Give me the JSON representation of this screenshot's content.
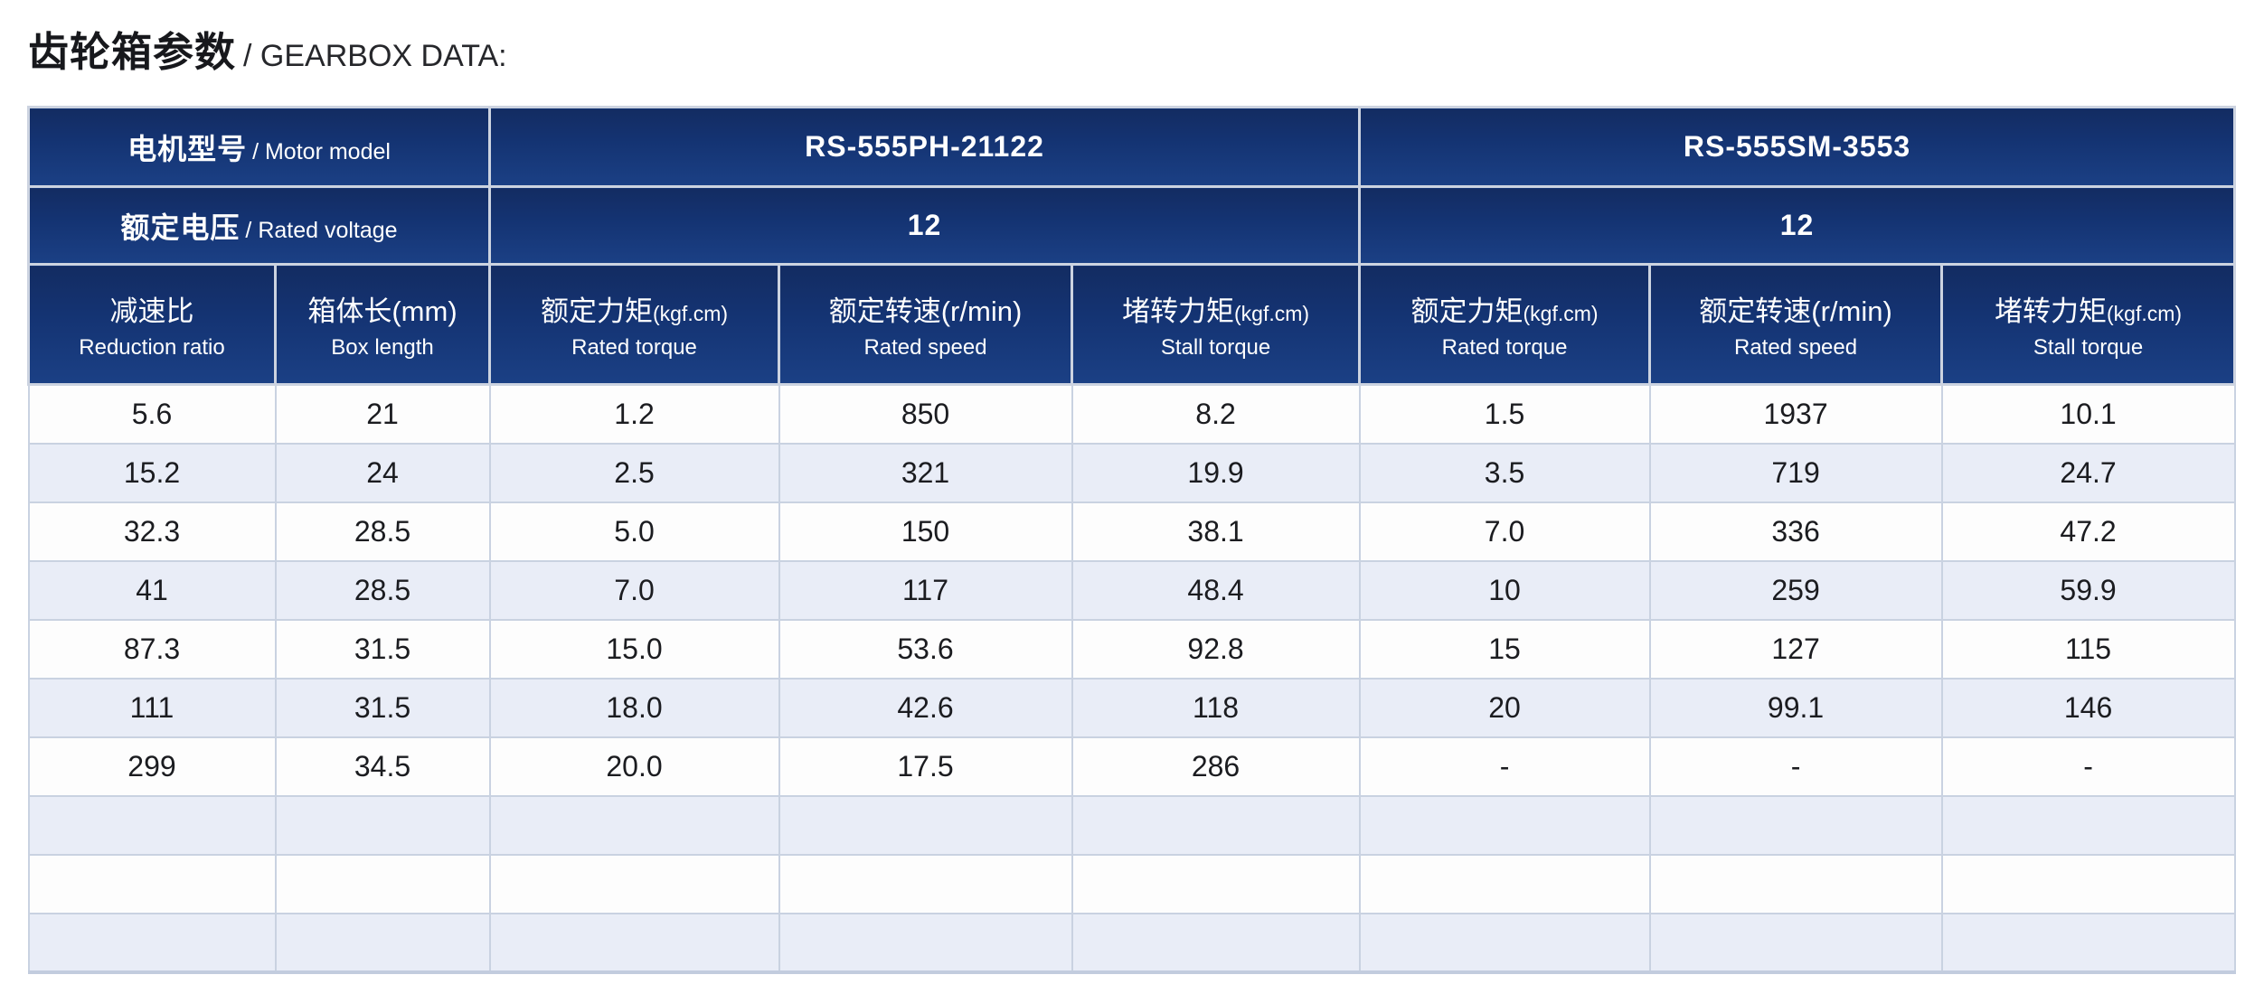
{
  "title": {
    "cn": "齿轮箱参数",
    "en": "/ GEARBOX DATA:"
  },
  "colors": {
    "header_navy_top": "#132c62",
    "header_navy_bottom": "#1b4085",
    "row_alt_blue": "#e9edf7",
    "row_white": "#fdfdfd",
    "grid_line": "#c9d2e1",
    "header_text": "#ffffff",
    "body_text": "#1b1c20"
  },
  "table": {
    "motor_model_label": {
      "cn": "电机型号",
      "en": "/ Motor model"
    },
    "rated_voltage_label": {
      "cn": "额定电压",
      "en": "/ Rated voltage"
    },
    "motors": [
      {
        "model": "RS-555PH-21122",
        "voltage": "12"
      },
      {
        "model": "RS-555SM-3553",
        "voltage": "12"
      }
    ],
    "columns": [
      {
        "cn": "减速比",
        "unit": "",
        "en": "Reduction ratio"
      },
      {
        "cn": "箱体长(mm)",
        "unit": "",
        "en": "Box length"
      },
      {
        "cn": "额定力矩",
        "unit": "(kgf.cm)",
        "en": "Rated torque"
      },
      {
        "cn": "额定转速(r/min)",
        "unit": "",
        "en": "Rated speed"
      },
      {
        "cn": "堵转力矩",
        "unit": "(kgf.cm)",
        "en": "Stall torque"
      },
      {
        "cn": "额定力矩",
        "unit": "(kgf.cm)",
        "en": "Rated torque"
      },
      {
        "cn": "额定转速(r/min)",
        "unit": "",
        "en": "Rated speed"
      },
      {
        "cn": "堵转力矩",
        "unit": "(kgf.cm)",
        "en": "Stall torque"
      }
    ],
    "rows": [
      [
        "5.6",
        "21",
        "1.2",
        "850",
        "8.2",
        "1.5",
        "1937",
        "10.1"
      ],
      [
        "15.2",
        "24",
        "2.5",
        "321",
        "19.9",
        "3.5",
        "719",
        "24.7"
      ],
      [
        "32.3",
        "28.5",
        "5.0",
        "150",
        "38.1",
        "7.0",
        "336",
        "47.2"
      ],
      [
        "41",
        "28.5",
        "7.0",
        "117",
        "48.4",
        "10",
        "259",
        "59.9"
      ],
      [
        "87.3",
        "31.5",
        "15.0",
        "53.6",
        "92.8",
        "15",
        "127",
        "115"
      ],
      [
        "111",
        "31.5",
        "18.0",
        "42.6",
        "118",
        "20",
        "99.1",
        "146"
      ],
      [
        "299",
        "34.5",
        "20.0",
        "17.5",
        "286",
        "-",
        "-",
        "-"
      ],
      [
        "",
        "",
        "",
        "",
        "",
        "",
        "",
        ""
      ],
      [
        "",
        "",
        "",
        "",
        "",
        "",
        "",
        ""
      ],
      [
        "",
        "",
        "",
        "",
        "",
        "",
        "",
        ""
      ]
    ]
  }
}
